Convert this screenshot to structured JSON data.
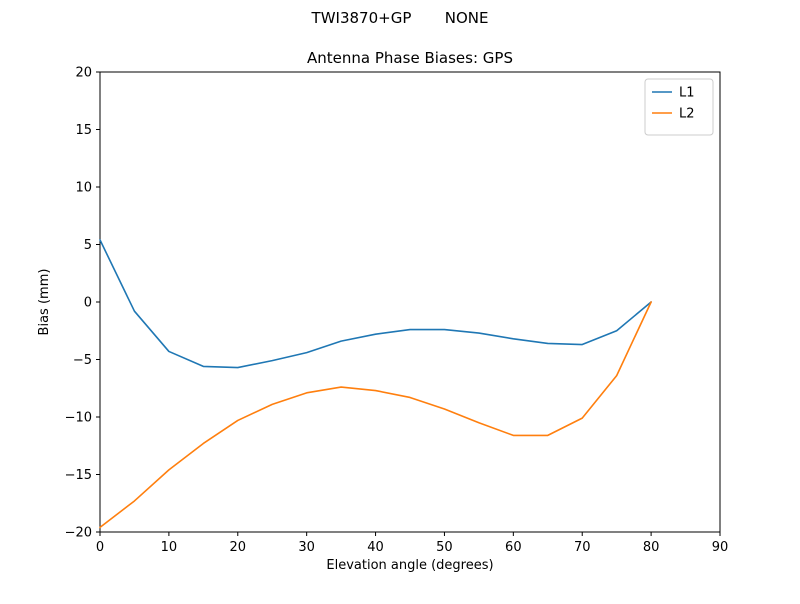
{
  "figure": {
    "suptitle": "TWI3870+GP       NONE",
    "title": "Antenna Phase Biases: GPS",
    "xlabel": "Elevation angle (degrees)",
    "ylabel": "Bias (mm)"
  },
  "chart_data": {
    "type": "line",
    "suptitle": "TWI3870+GP       NONE",
    "title": "Antenna Phase Biases: GPS",
    "xlabel": "Elevation angle (degrees)",
    "ylabel": "Bias (mm)",
    "xlim": [
      0,
      90
    ],
    "ylim": [
      -20,
      20
    ],
    "xticks": [
      0,
      10,
      20,
      30,
      40,
      50,
      60,
      70,
      80,
      90
    ],
    "yticks": [
      -20,
      -15,
      -10,
      -5,
      0,
      5,
      10,
      15,
      20
    ],
    "grid": false,
    "legend_position": "upper right",
    "background": "#ffffff",
    "axes_edge_color": "#000000",
    "x": [
      0,
      5,
      10,
      15,
      20,
      25,
      30,
      35,
      40,
      45,
      50,
      55,
      60,
      65,
      70,
      75,
      80
    ],
    "series": [
      {
        "name": "L1",
        "color": "#1f77b4",
        "values": [
          5.4,
          -0.8,
          -4.3,
          -5.6,
          -5.7,
          -5.1,
          -4.4,
          -3.4,
          -2.8,
          -2.4,
          -2.4,
          -2.7,
          -3.2,
          -3.6,
          -3.7,
          -2.5,
          0.0
        ]
      },
      {
        "name": "L2",
        "color": "#ff7f0e",
        "values": [
          -19.6,
          -17.3,
          -14.6,
          -12.3,
          -10.3,
          -8.9,
          -7.9,
          -7.4,
          -7.7,
          -8.3,
          -9.3,
          -10.5,
          -11.6,
          -11.6,
          -10.1,
          -6.4,
          0.0
        ]
      }
    ]
  }
}
